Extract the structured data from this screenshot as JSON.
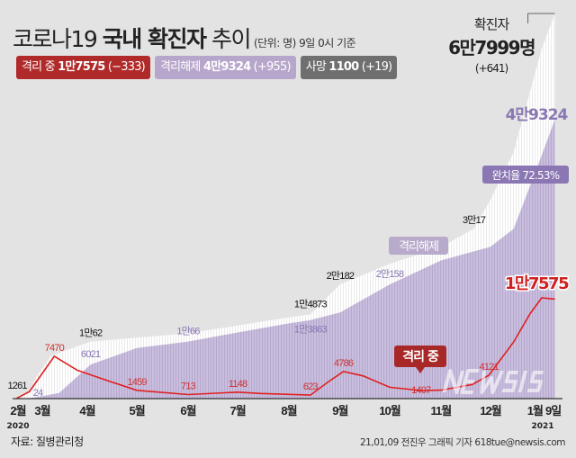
{
  "header": {
    "title_light": "코로나19",
    "title_bold": "국내 확진자",
    "title_tail": "추이",
    "unit": "(단위: 명) 9일 0시 기준"
  },
  "legend": [
    {
      "label": "격리 중",
      "value": "1만7575",
      "delta": "(−333)",
      "color": "#b12a2a"
    },
    {
      "label": "격리해제",
      "value": "4만9324",
      "delta": "(+955)",
      "color": "#b7a6cc"
    },
    {
      "label": "사망",
      "value": "1100",
      "delta": "(+19)",
      "color": "#6f6f6f"
    }
  ],
  "total": {
    "label": "확진자",
    "value": "6만7999명",
    "delta": "(+641)"
  },
  "released_label": "4만9324",
  "recovery": {
    "label": "완치율",
    "value": "72.53%"
  },
  "footer": {
    "source": "자료: 질병관리청",
    "credit": "21,01,09 전진우 그래픽 기자 618tue@newsis.com",
    "watermark": "NEWSIS"
  },
  "chart_data": {
    "type": "area",
    "colors": {
      "confirmed": "#ffffff",
      "released": "#c9bedd",
      "isolated": "#e02020"
    },
    "x_ticks": [
      "2월",
      "3월",
      "4월",
      "5월",
      "6월",
      "7월",
      "8월",
      "9월",
      "10월",
      "11월",
      "12월",
      "1월",
      "9일"
    ],
    "x_tick_dates": [
      "2020-02-18",
      "2020-03-01",
      "2020-04-01",
      "2020-05-01",
      "2020-06-01",
      "2020-07-01",
      "2020-08-01",
      "2020-09-01",
      "2020-10-01",
      "2020-11-01",
      "2020-12-01",
      "2021-01-01",
      "2021-01-09"
    ],
    "year_labels": [
      {
        "date": "2020-02-18",
        "text": "2020"
      },
      {
        "date": "2021-01-01",
        "text": "2021"
      }
    ],
    "ylim": [
      0,
      68000
    ],
    "series": [
      {
        "key": "confirmed",
        "label": "확진자",
        "points": [
          [
            "2020-02-18",
            31
          ],
          [
            "2020-02-26",
            1261
          ],
          [
            "2020-03-01",
            3736
          ],
          [
            "2020-03-10",
            7513
          ],
          [
            "2020-03-26",
            9241
          ],
          [
            "2020-04-03",
            10062
          ],
          [
            "2020-05-01",
            10774
          ],
          [
            "2020-06-01",
            11541
          ],
          [
            "2020-07-01",
            12904
          ],
          [
            "2020-08-01",
            14336
          ],
          [
            "2020-08-14",
            14873
          ],
          [
            "2020-09-01",
            20182
          ],
          [
            "2020-10-01",
            23812
          ],
          [
            "2020-11-01",
            26732
          ],
          [
            "2020-11-21",
            30017
          ],
          [
            "2020-12-01",
            35163
          ],
          [
            "2020-12-15",
            43484
          ],
          [
            "2021-01-01",
            61769
          ],
          [
            "2021-01-09",
            67999
          ]
        ]
      },
      {
        "key": "released",
        "label": "격리해제",
        "points": [
          [
            "2020-02-18",
            12
          ],
          [
            "2020-02-26",
            24
          ],
          [
            "2020-03-15",
            1000
          ],
          [
            "2020-04-03",
            6021
          ],
          [
            "2020-05-01",
            8922
          ],
          [
            "2020-06-01",
            10066
          ],
          [
            "2020-07-01",
            11684
          ],
          [
            "2020-08-01",
            13280
          ],
          [
            "2020-08-14",
            13863
          ],
          [
            "2020-09-01",
            15198
          ],
          [
            "2020-10-01",
            20158
          ],
          [
            "2020-11-01",
            24395
          ],
          [
            "2020-12-01",
            26825
          ],
          [
            "2020-12-15",
            29958
          ],
          [
            "2021-01-01",
            42953
          ],
          [
            "2021-01-09",
            49324
          ]
        ]
      },
      {
        "key": "isolated",
        "label": "격리 중",
        "points": [
          [
            "2020-02-18",
            19
          ],
          [
            "2020-02-26",
            1237
          ],
          [
            "2020-03-12",
            7470
          ],
          [
            "2020-03-26",
            5000
          ],
          [
            "2020-04-15",
            3000
          ],
          [
            "2020-05-01",
            1459
          ],
          [
            "2020-06-01",
            713
          ],
          [
            "2020-07-01",
            1148
          ],
          [
            "2020-07-15",
            900
          ],
          [
            "2020-08-14",
            623
          ],
          [
            "2020-08-25",
            3000
          ],
          [
            "2020-09-03",
            4786
          ],
          [
            "2020-09-15",
            4000
          ],
          [
            "2020-10-01",
            2000
          ],
          [
            "2020-10-20",
            1407
          ],
          [
            "2020-11-01",
            1500
          ],
          [
            "2020-11-20",
            2500
          ],
          [
            "2020-11-30",
            4121
          ],
          [
            "2020-12-15",
            10000
          ],
          [
            "2020-12-25",
            15000
          ],
          [
            "2021-01-01",
            17800
          ],
          [
            "2021-01-09",
            17575
          ]
        ]
      }
    ],
    "annotations": [
      {
        "series": "confirmed",
        "date": "2020-02-26",
        "text": "1261"
      },
      {
        "series": "confirmed",
        "date": "2020-04-03",
        "text": "1만62"
      },
      {
        "series": "confirmed",
        "date": "2020-08-14",
        "text": "1만4873"
      },
      {
        "series": "confirmed",
        "date": "2020-09-01",
        "text": "2만182"
      },
      {
        "series": "confirmed",
        "date": "2020-11-21",
        "text": "3만17"
      },
      {
        "series": "released",
        "date": "2020-02-26",
        "text": "24"
      },
      {
        "series": "released",
        "date": "2020-04-03",
        "text": "6021"
      },
      {
        "series": "released",
        "date": "2020-06-01",
        "text": "1만66"
      },
      {
        "series": "released",
        "date": "2020-08-14",
        "text": "1만3863"
      },
      {
        "series": "released",
        "date": "2020-10-01",
        "text": "2만158"
      },
      {
        "series": "isolated",
        "date": "2020-03-12",
        "text": "7470"
      },
      {
        "series": "isolated",
        "date": "2020-05-01",
        "text": "1459"
      },
      {
        "series": "isolated",
        "date": "2020-06-01",
        "text": "713"
      },
      {
        "series": "isolated",
        "date": "2020-07-01",
        "text": "1148"
      },
      {
        "series": "isolated",
        "date": "2020-08-14",
        "text": "623"
      },
      {
        "series": "isolated",
        "date": "2020-09-03",
        "text": "4786"
      },
      {
        "series": "isolated",
        "date": "2020-10-20",
        "text": "1407"
      },
      {
        "series": "isolated",
        "date": "2020-11-30",
        "text": "4121"
      }
    ],
    "series_labels": {
      "released": "격리해제",
      "isolated": "격리 중",
      "isolated_final": "1만7575"
    }
  }
}
